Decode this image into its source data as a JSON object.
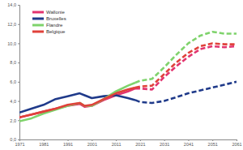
{
  "chart_data": {
    "type": "line",
    "x": [
      1971,
      1976,
      1981,
      1986,
      1991,
      1996,
      1998,
      2001,
      2006,
      2011,
      2016,
      2019,
      2021,
      2026,
      2031,
      2036,
      2041,
      2046,
      2051,
      2056,
      2061
    ],
    "series": [
      {
        "name": "Wallonie",
        "color": "#e2346f",
        "line_style": "solid",
        "values": [
          2.3,
          2.6,
          2.9,
          3.2,
          3.5,
          3.7,
          3.4,
          3.5,
          4.1,
          4.6,
          5.0,
          5.3,
          null,
          null,
          null,
          null,
          null,
          null,
          null,
          null,
          null
        ]
      },
      {
        "name": "Bruxelles",
        "color": "#1f3a8a",
        "line_style": "solid",
        "values": [
          2.8,
          3.2,
          3.6,
          4.2,
          4.5,
          4.8,
          4.6,
          4.3,
          4.5,
          4.6,
          4.3,
          4.1,
          null,
          null,
          null,
          null,
          null,
          null,
          null,
          null,
          null
        ]
      },
      {
        "name": "Flandre",
        "color": "#7fd36c",
        "line_style": "solid",
        "values": [
          1.9,
          2.2,
          2.7,
          3.1,
          3.5,
          3.8,
          3.5,
          3.5,
          4.2,
          5.0,
          5.6,
          5.9,
          null,
          null,
          null,
          null,
          null,
          null,
          null,
          null,
          null
        ]
      },
      {
        "name": "Belgique",
        "color": "#e0413a",
        "line_style": "solid",
        "values": [
          2.3,
          2.6,
          2.9,
          3.2,
          3.6,
          3.8,
          3.5,
          3.6,
          4.2,
          4.8,
          5.2,
          5.4,
          null,
          null,
          null,
          null,
          null,
          null,
          null,
          null,
          null
        ]
      },
      {
        "color": "#e2346f",
        "line_style": "dashed",
        "values": [
          null,
          null,
          null,
          null,
          null,
          null,
          null,
          null,
          null,
          null,
          null,
          5.3,
          5.3,
          5.2,
          6.5,
          7.6,
          8.6,
          9.4,
          9.7,
          9.6,
          9.7
        ]
      },
      {
        "color": "#1f3a8a",
        "line_style": "dashed",
        "values": [
          null,
          null,
          null,
          null,
          null,
          null,
          null,
          null,
          null,
          null,
          null,
          4.1,
          3.9,
          3.8,
          4.0,
          4.4,
          4.8,
          5.1,
          5.4,
          5.7,
          6.0
        ]
      },
      {
        "color": "#7fd36c",
        "line_style": "dashed",
        "values": [
          null,
          null,
          null,
          null,
          null,
          null,
          null,
          null,
          null,
          null,
          null,
          5.9,
          6.1,
          6.3,
          7.5,
          8.8,
          10.0,
          10.8,
          11.2,
          11.0,
          11.0
        ]
      },
      {
        "color": "#e0413a",
        "line_style": "dashed",
        "values": [
          null,
          null,
          null,
          null,
          null,
          null,
          null,
          null,
          null,
          null,
          null,
          5.4,
          5.5,
          5.6,
          6.8,
          8.0,
          9.0,
          9.7,
          10.0,
          9.9,
          9.9
        ]
      }
    ],
    "xlim": [
      1971,
      2061
    ],
    "xticks": [
      1971,
      1981,
      1991,
      2001,
      2011,
      2021,
      2031,
      2041,
      2051,
      2061
    ],
    "ylim": [
      0,
      14
    ],
    "yticks": [
      {
        "value": 0,
        "label": "0,0"
      },
      {
        "value": 2,
        "label": "2,0"
      },
      {
        "value": 4,
        "label": "4,0"
      },
      {
        "value": 6,
        "label": "6,0"
      },
      {
        "value": 8,
        "label": "8,0"
      },
      {
        "value": 10,
        "label": "10,0"
      },
      {
        "value": 12,
        "label": "12,0"
      },
      {
        "value": 14,
        "label": "14,0"
      }
    ],
    "grid": false,
    "legend": "upper left"
  }
}
